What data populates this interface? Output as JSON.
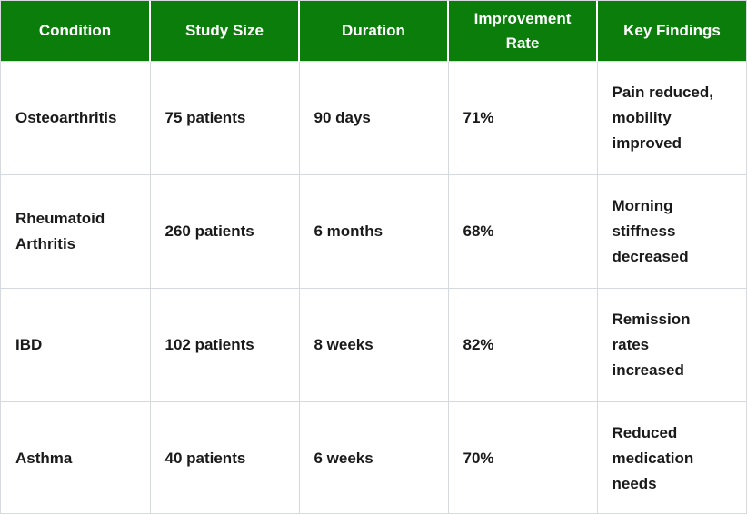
{
  "colors": {
    "header_bg": "#0a7d0a",
    "header_text": "#ffffff",
    "header_separator": "#ffffff",
    "border": "#d6dade",
    "body_text": "#1a1a1a",
    "row_bg": "#ffffff"
  },
  "table": {
    "columns": [
      {
        "label": "Condition"
      },
      {
        "label": "Study Size"
      },
      {
        "label": "Duration"
      },
      {
        "label": "Improvement Rate"
      },
      {
        "label": "Key Findings"
      }
    ],
    "rows": [
      {
        "condition": "Osteoarthritis",
        "study_size": "75 patients",
        "duration": "90 days",
        "improvement_rate": "71%",
        "key_findings": "Pain reduced, mobility improved"
      },
      {
        "condition": "Rheumatoid Arthritis",
        "study_size": "260 patients",
        "duration": "6 months",
        "improvement_rate": "68%",
        "key_findings": "Morning stiffness decreased"
      },
      {
        "condition": "IBD",
        "study_size": "102 patients",
        "duration": "8 weeks",
        "improvement_rate": "82%",
        "key_findings": "Remission rates increased"
      },
      {
        "condition": "Asthma",
        "study_size": "40 patients",
        "duration": "6 weeks",
        "improvement_rate": "70%",
        "key_findings": "Reduced medication needs"
      }
    ]
  }
}
